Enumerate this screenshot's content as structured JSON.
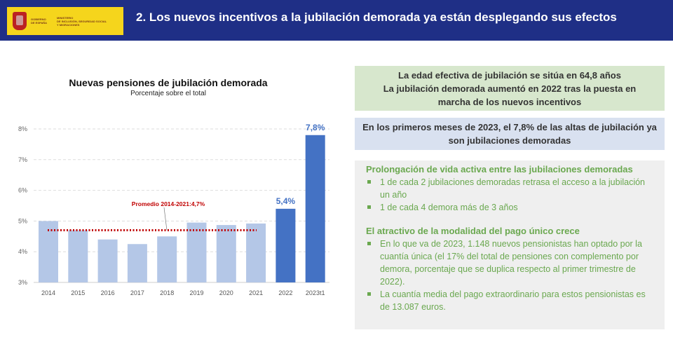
{
  "header": {
    "logo_text": [
      "GOBIERNO DE ESPAÑA",
      "MINISTERIO DE INCLUSIÓN, SEGURIDAD SOCIAL Y MIGRACIONES"
    ],
    "title": "2. Los nuevos incentivos a la jubilación demorada ya están desplegando sus efectos"
  },
  "chart_data": {
    "type": "bar",
    "title": "Nuevas pensiones de jubilación demorada",
    "subtitle": "Porcentaje sobre el total",
    "categories": [
      "2014",
      "2015",
      "2016",
      "2017",
      "2018",
      "2019",
      "2020",
      "2021",
      "2022",
      "2023t1"
    ],
    "values": [
      5.0,
      4.7,
      4.4,
      4.25,
      4.5,
      4.95,
      4.87,
      4.92,
      5.4,
      7.8
    ],
    "data_labels": {
      "8": "5,4%",
      "9": "7,8%"
    },
    "ylim": [
      3,
      8
    ],
    "yticks": [
      "3%",
      "4%",
      "5%",
      "6%",
      "7%",
      "8%"
    ],
    "grid": true,
    "average": {
      "label": "Promedio 2014-2021:4,7%",
      "value": 4.7
    },
    "colors": {
      "light": "#b4c7e7",
      "dark": "#4472c4",
      "average": "#c00000"
    }
  },
  "panel": {
    "box1": [
      "La edad efectiva de jubilación se sitúa en 64,8 años",
      "La jubilación demorada aumentó en 2022 tras la puesta en marcha de los nuevos incentivos"
    ],
    "box2": "En los primeros meses de 2023, el 7,8% de las altas de jubilación ya son jubilaciones demoradas",
    "sec1": {
      "title": "Prolongación de vida activa entre las jubilaciones demoradas",
      "items": [
        "1 de cada 2 jubilaciones demoradas retrasa el acceso a la jubilación un año",
        "1 de cada 4 demora más de 3 años"
      ]
    },
    "sec2": {
      "title": "El atractivo de la modalidad del pago único crece",
      "items": [
        "En lo que va de 2023, 1.148 nuevos pensionistas han optado por la cuantía única (el 17% del total de pensiones con complemento por demora, porcentaje que se duplica respecto al primer trimestre de 2022).",
        "La cuantía media del pago extraordinario para estos pensionistas es de 13.087 euros."
      ]
    }
  }
}
